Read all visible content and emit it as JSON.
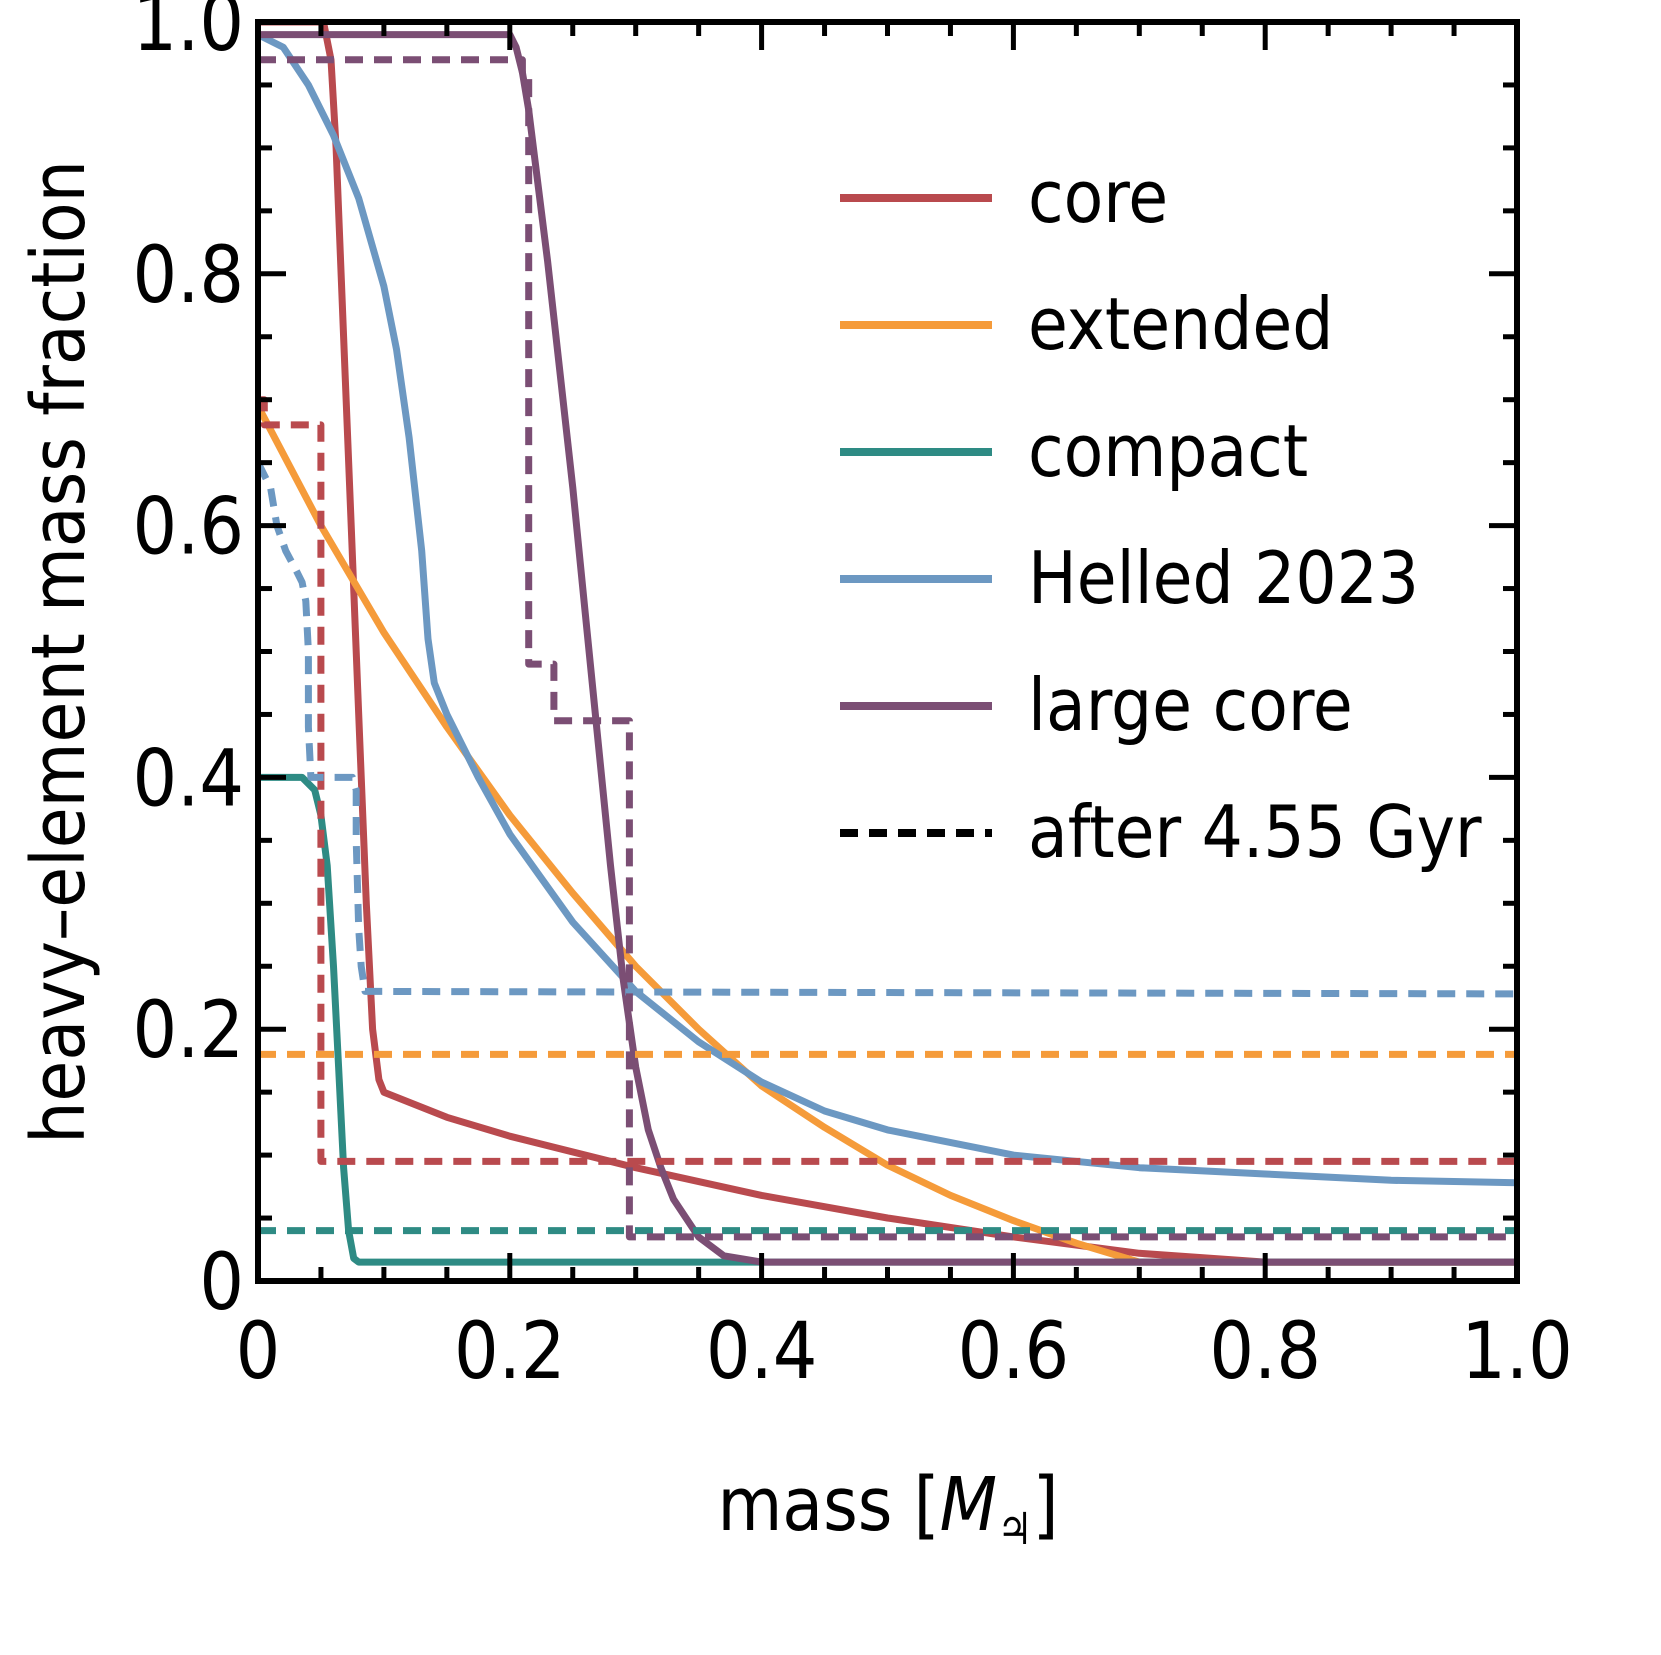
{
  "chart_data": {
    "type": "line",
    "xlabel": "mass [",
    "xlabel_symbol": "M",
    "xlabel_subscript": "♃",
    "xlabel_suffix": "]",
    "ylabel": "heavy–element mass fraction",
    "xlim": [
      0,
      1.0
    ],
    "ylim": [
      0,
      1.0
    ],
    "x_ticks": [
      0,
      0.2,
      0.4,
      0.6,
      0.8,
      1.0
    ],
    "x_tick_labels": [
      "0",
      "0.2",
      "0.4",
      "0.6",
      "0.8",
      "1.0"
    ],
    "y_ticks": [
      0,
      0.2,
      0.4,
      0.6,
      0.8,
      1.0
    ],
    "y_tick_labels": [
      "0",
      "0.2",
      "0.4",
      "0.6",
      "0.8",
      "1.0"
    ],
    "grid": false,
    "legend_position": "upper-right",
    "legend": [
      {
        "name": "core",
        "color": "#b94a4e",
        "style": "solid"
      },
      {
        "name": "extended",
        "color": "#f59b3a",
        "style": "solid"
      },
      {
        "name": "compact",
        "color": "#2e8b84",
        "style": "solid"
      },
      {
        "name": "Helled 2023",
        "color": "#6c98c2",
        "style": "solid"
      },
      {
        "name": "large core",
        "color": "#7b4e74",
        "style": "solid"
      },
      {
        "name": "after 4.55 Gyr",
        "color": "#000000",
        "style": "dashed"
      }
    ],
    "series": [
      {
        "legend": "core",
        "color": "#b94a4e",
        "style": "solid",
        "points": [
          [
            0,
            1.0
          ],
          [
            0.052,
            1.0
          ],
          [
            0.058,
            0.97
          ],
          [
            0.062,
            0.9
          ],
          [
            0.068,
            0.75
          ],
          [
            0.074,
            0.6
          ],
          [
            0.08,
            0.45
          ],
          [
            0.086,
            0.3
          ],
          [
            0.091,
            0.2
          ],
          [
            0.096,
            0.16
          ],
          [
            0.1,
            0.15
          ],
          [
            0.15,
            0.13
          ],
          [
            0.2,
            0.115
          ],
          [
            0.3,
            0.09
          ],
          [
            0.4,
            0.068
          ],
          [
            0.5,
            0.05
          ],
          [
            0.6,
            0.035
          ],
          [
            0.7,
            0.022
          ],
          [
            0.8,
            0.015
          ],
          [
            1.0,
            0.015
          ]
        ]
      },
      {
        "legend": "extended",
        "color": "#f59b3a",
        "style": "solid",
        "points": [
          [
            0,
            0.695
          ],
          [
            0.05,
            0.6
          ],
          [
            0.1,
            0.515
          ],
          [
            0.15,
            0.44
          ],
          [
            0.2,
            0.37
          ],
          [
            0.25,
            0.308
          ],
          [
            0.3,
            0.25
          ],
          [
            0.35,
            0.2
          ],
          [
            0.4,
            0.155
          ],
          [
            0.45,
            0.122
          ],
          [
            0.5,
            0.092
          ],
          [
            0.55,
            0.068
          ],
          [
            0.6,
            0.048
          ],
          [
            0.65,
            0.03
          ],
          [
            0.7,
            0.015
          ],
          [
            0.8,
            0.015
          ],
          [
            1.0,
            0.015
          ]
        ]
      },
      {
        "legend": "compact",
        "color": "#2e8b84",
        "style": "solid",
        "points": [
          [
            0,
            0.4
          ],
          [
            0.035,
            0.4
          ],
          [
            0.045,
            0.39
          ],
          [
            0.05,
            0.37
          ],
          [
            0.055,
            0.33
          ],
          [
            0.06,
            0.25
          ],
          [
            0.064,
            0.17
          ],
          [
            0.068,
            0.09
          ],
          [
            0.072,
            0.04
          ],
          [
            0.076,
            0.018
          ],
          [
            0.08,
            0.015
          ],
          [
            0.2,
            0.015
          ],
          [
            1.0,
            0.015
          ]
        ]
      },
      {
        "legend": "Helled 2023",
        "color": "#6c98c2",
        "style": "solid",
        "points": [
          [
            0,
            0.99
          ],
          [
            0.02,
            0.98
          ],
          [
            0.04,
            0.95
          ],
          [
            0.06,
            0.91
          ],
          [
            0.08,
            0.86
          ],
          [
            0.1,
            0.79
          ],
          [
            0.11,
            0.74
          ],
          [
            0.12,
            0.67
          ],
          [
            0.13,
            0.58
          ],
          [
            0.135,
            0.51
          ],
          [
            0.14,
            0.475
          ],
          [
            0.15,
            0.45
          ],
          [
            0.175,
            0.4
          ],
          [
            0.2,
            0.355
          ],
          [
            0.25,
            0.285
          ],
          [
            0.3,
            0.23
          ],
          [
            0.35,
            0.19
          ],
          [
            0.4,
            0.158
          ],
          [
            0.45,
            0.135
          ],
          [
            0.5,
            0.12
          ],
          [
            0.6,
            0.1
          ],
          [
            0.7,
            0.09
          ],
          [
            0.8,
            0.085
          ],
          [
            0.9,
            0.08
          ],
          [
            1.0,
            0.078
          ]
        ]
      },
      {
        "legend": "large core",
        "color": "#7b4e74",
        "style": "solid",
        "points": [
          [
            0,
            0.99
          ],
          [
            0.2,
            0.99
          ],
          [
            0.205,
            0.98
          ],
          [
            0.21,
            0.96
          ],
          [
            0.215,
            0.93
          ],
          [
            0.22,
            0.89
          ],
          [
            0.23,
            0.81
          ],
          [
            0.24,
            0.72
          ],
          [
            0.25,
            0.63
          ],
          [
            0.26,
            0.53
          ],
          [
            0.27,
            0.43
          ],
          [
            0.28,
            0.33
          ],
          [
            0.29,
            0.24
          ],
          [
            0.3,
            0.17
          ],
          [
            0.31,
            0.12
          ],
          [
            0.32,
            0.09
          ],
          [
            0.33,
            0.065
          ],
          [
            0.35,
            0.035
          ],
          [
            0.37,
            0.02
          ],
          [
            0.4,
            0.015
          ],
          [
            1.0,
            0.015
          ]
        ]
      },
      {
        "legend": "core",
        "color": "#b94a4e",
        "style": "dashed",
        "points": [
          [
            0,
            0.7
          ],
          [
            0.005,
            0.7
          ],
          [
            0.005,
            0.68
          ],
          [
            0.05,
            0.68
          ],
          [
            0.05,
            0.095
          ],
          [
            1.0,
            0.095
          ]
        ]
      },
      {
        "legend": "extended",
        "color": "#f59b3a",
        "style": "dashed",
        "points": [
          [
            0,
            0.18
          ],
          [
            1.0,
            0.18
          ]
        ]
      },
      {
        "legend": "compact",
        "color": "#2e8b84",
        "style": "dashed",
        "points": [
          [
            0,
            0.04
          ],
          [
            1.0,
            0.04
          ]
        ]
      },
      {
        "legend": "Helled 2023",
        "color": "#6c98c2",
        "style": "dashed",
        "points": [
          [
            0,
            0.65
          ],
          [
            0.01,
            0.63
          ],
          [
            0.015,
            0.6
          ],
          [
            0.022,
            0.58
          ],
          [
            0.03,
            0.565
          ],
          [
            0.035,
            0.555
          ],
          [
            0.038,
            0.54
          ],
          [
            0.04,
            0.5
          ],
          [
            0.04,
            0.44
          ],
          [
            0.042,
            0.4
          ],
          [
            0.075,
            0.4
          ],
          [
            0.078,
            0.39
          ],
          [
            0.078,
            0.35
          ],
          [
            0.08,
            0.28
          ],
          [
            0.082,
            0.25
          ],
          [
            0.085,
            0.23
          ],
          [
            1.0,
            0.228
          ]
        ]
      },
      {
        "legend": "large core",
        "color": "#7b4e74",
        "style": "dashed",
        "points": [
          [
            0,
            0.97
          ],
          [
            0.21,
            0.97
          ],
          [
            0.21,
            0.96
          ],
          [
            0.215,
            0.96
          ],
          [
            0.215,
            0.49
          ],
          [
            0.235,
            0.49
          ],
          [
            0.235,
            0.445
          ],
          [
            0.295,
            0.445
          ],
          [
            0.295,
            0.035
          ],
          [
            1.0,
            0.035
          ]
        ]
      }
    ]
  }
}
